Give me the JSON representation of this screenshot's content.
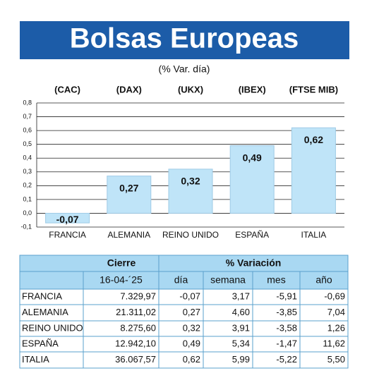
{
  "chart_data": {
    "type": "bar",
    "title": "Bolsas Europeas",
    "subtitle": "(% Var. día)",
    "indices": [
      "(CAC)",
      "(DAX)",
      "(UKX)",
      "(IBEX)",
      "(FTSE MIB)"
    ],
    "categories": [
      "FRANCIA",
      "ALEMANIA",
      "REINO UNIDO",
      "ESPAÑA",
      "ITALIA"
    ],
    "values": [
      -0.07,
      0.27,
      0.32,
      0.49,
      0.62
    ],
    "value_labels": [
      "-0,07",
      "0,27",
      "0,32",
      "0,49",
      "0,62"
    ],
    "color": "#bfe4f8",
    "ylim": [
      -0.1,
      0.8
    ],
    "yticks": [
      {
        "value": -0.1,
        "label": "-0,1"
      },
      {
        "value": 0,
        "label": "0,0"
      },
      {
        "value": 0.1,
        "label": "0,1"
      },
      {
        "value": 0.2,
        "label": "0,2"
      },
      {
        "value": 0.3,
        "label": "0,3"
      },
      {
        "value": 0.4,
        "label": "0,4"
      },
      {
        "value": 0.5,
        "label": "0,5"
      },
      {
        "value": 0.6,
        "label": "0,6"
      },
      {
        "value": 0.7,
        "label": "0,7"
      },
      {
        "value": 0.8,
        "label": "0,8"
      }
    ],
    "grid": true
  },
  "table": {
    "header": [
      "Cierre",
      "% Variación"
    ],
    "subheader": [
      "16-04-´25",
      "día",
      "semana",
      "mes",
      "año"
    ],
    "rows": [
      [
        "FRANCIA",
        "7.329,97",
        "-0,07",
        "3,17",
        "-5,91",
        "-0,69"
      ],
      [
        "ALEMANIA",
        "21.311,02",
        "0,27",
        "4,60",
        "-3,85",
        "7,04"
      ],
      [
        "REINO UNIDO",
        "8.275,60",
        "0,32",
        "3,91",
        "-3,58",
        "1,26"
      ],
      [
        "ESPAÑA",
        "12.942,10",
        "0,49",
        "5,34",
        "-1,47",
        "11,62"
      ],
      [
        "ITALIA",
        "36.067,57",
        "0,62",
        "5,99",
        "-5,22",
        "5,50"
      ]
    ]
  }
}
